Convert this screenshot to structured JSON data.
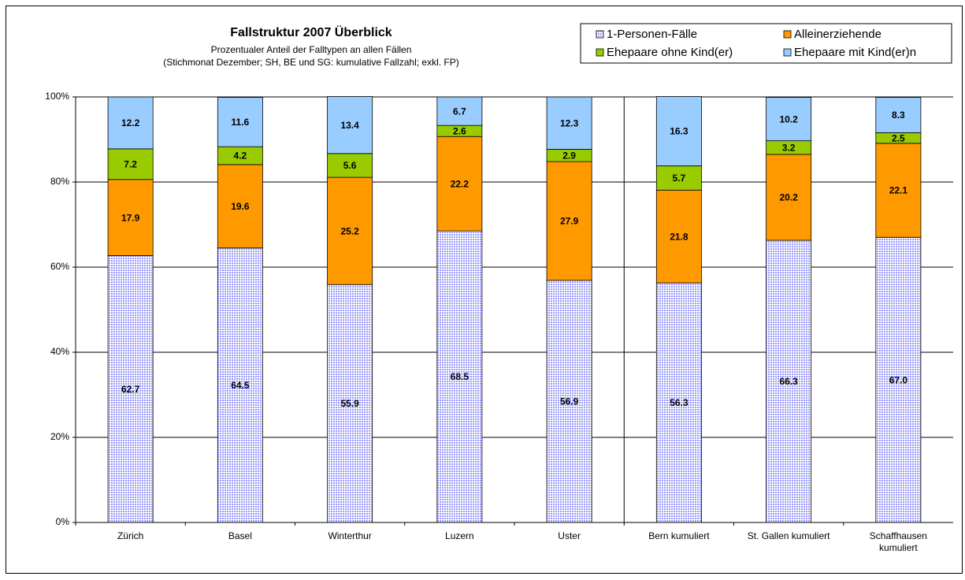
{
  "chart_data": {
    "type": "stacked_bar",
    "title": "Fallstruktur 2007 Überblick",
    "subtitle": [
      "Prozentualer Anteil der Falltypen an allen Fällen",
      "(Stichmonat Dezember; SH, BE und SG: kumulative Fallzahl; exkl. FP)"
    ],
    "categories": [
      "Zürich",
      "Basel",
      "Winterthur",
      "Luzern",
      "Uster",
      "Bern kumuliert",
      "St. Gallen kumuliert",
      "Schaffhausen kumuliert"
    ],
    "series": [
      {
        "name": "1-Personen-Fälle",
        "color": "#9999ff",
        "pattern": true,
        "values": [
          62.7,
          64.5,
          55.9,
          68.5,
          56.9,
          56.3,
          66.3,
          67.0
        ],
        "value_labels": [
          "62.7",
          "64.5",
          "55.9",
          "68.5",
          "56.9",
          "56.3",
          "66.3",
          "67.0"
        ]
      },
      {
        "name": "Alleinerziehende",
        "color": "#ff9900",
        "values": [
          17.9,
          19.6,
          25.2,
          22.2,
          27.9,
          21.8,
          20.2,
          22.1
        ]
      },
      {
        "name": "Ehepaare ohne Kind(er)",
        "color": "#99cc00",
        "values": [
          7.2,
          4.2,
          5.6,
          2.6,
          2.9,
          5.7,
          3.2,
          2.5
        ]
      },
      {
        "name": "Ehepaare mit Kind(er)n",
        "color": "#99ccff",
        "values": [
          12.2,
          11.6,
          13.4,
          6.7,
          12.3,
          16.3,
          10.2,
          8.3
        ]
      }
    ],
    "ylim": [
      0,
      100
    ],
    "yticks": [
      {
        "value": 0,
        "label": "0%"
      },
      {
        "value": 20,
        "label": "20%"
      },
      {
        "value": 40,
        "label": "40%"
      },
      {
        "value": 60,
        "label": "60%"
      },
      {
        "value": 80,
        "label": "80%"
      },
      {
        "value": 100,
        "label": "100%"
      }
    ],
    "grid": true,
    "legend": "upper right"
  }
}
